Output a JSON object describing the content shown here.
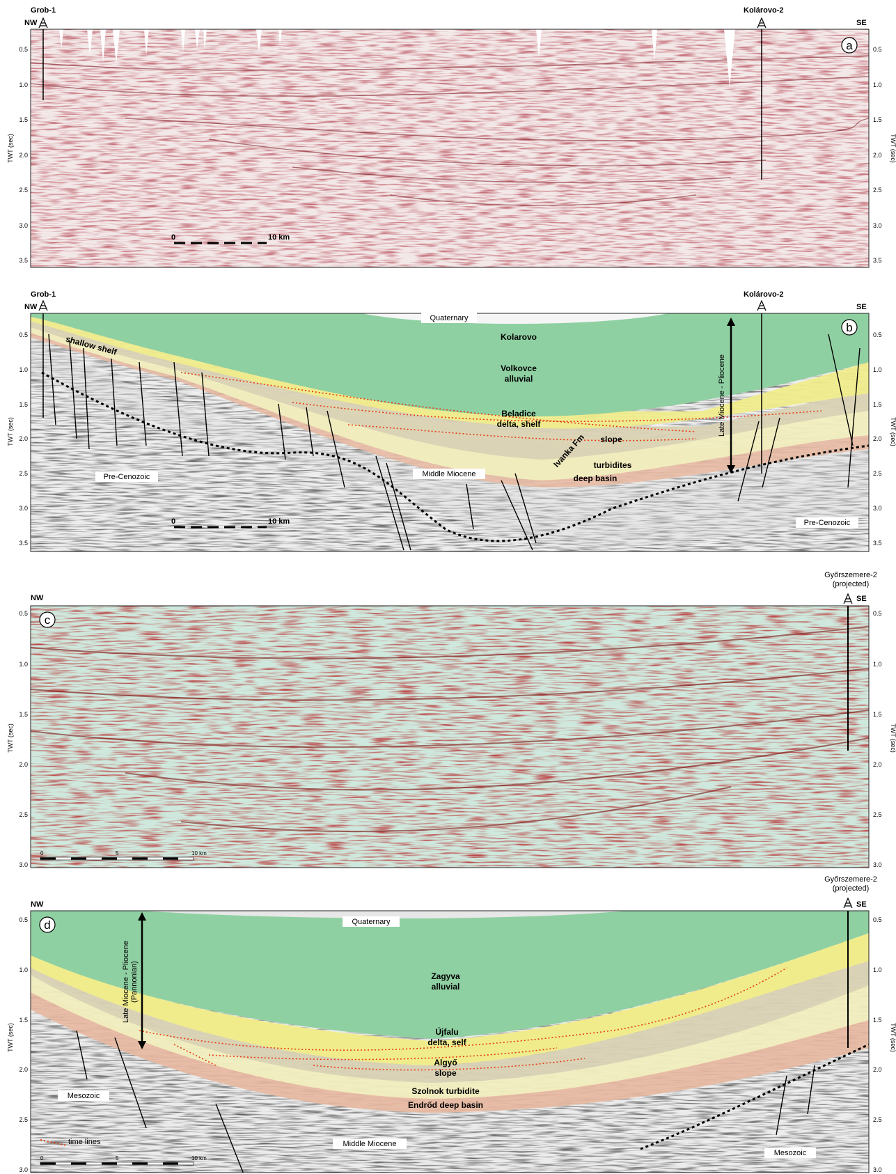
{
  "panels": [
    {
      "id": "a",
      "well_left": "Grob-1",
      "well_right": "Kolárovo-2",
      "nw": "NW",
      "se": "SE",
      "axis_label_left": "TWT (sec)",
      "axis_label_right": "TWT (sec)",
      "ticks": [
        "0.5",
        "1.0",
        "1.5",
        "2.0",
        "2.5",
        "3.0",
        "3.5"
      ],
      "scale_zero": "0",
      "scale_end": "10 km",
      "style": "seismic-red"
    },
    {
      "id": "b",
      "well_left": "Grob-1",
      "well_right": "Kolárovo-2",
      "nw": "NW",
      "se": "SE",
      "axis_label_left": "TWT (sec)",
      "axis_label_right": "TWT (sec)",
      "ticks": [
        "0.5",
        "1.0",
        "1.5",
        "2.0",
        "2.5",
        "3.0",
        "3.5"
      ],
      "scale_zero": "0",
      "scale_end": "10 km",
      "labels": {
        "quaternary": "Quaternary",
        "unit1": "Kolarovo",
        "unit2a": "Volkovce",
        "unit2b": "alluvial",
        "unit3a": "Beladice",
        "unit3b": "delta, shelf",
        "unit4": "slope",
        "unit5": "Ivanka Fm",
        "unit6": "turbidites",
        "unit7": "deep basin",
        "shelf": "shallow shelf",
        "middle": "Middle Miocene",
        "basement_left": "Pre-Cenozoic",
        "basement_right": "Pre-Cenozoic",
        "age": "Late Miocene - Pliocene"
      },
      "colors": {
        "alluvial": "#8fd0a2",
        "delta": "#f0ec8c",
        "slope": "#d9d2b4",
        "turbidite": "#f1eebf",
        "deep": "#e8b8a0"
      }
    },
    {
      "id": "c",
      "well_right": "Győrszemere-2",
      "well_right_sub": "(projected)",
      "nw": "NW",
      "se": "SE",
      "axis_label_left": "TWT (sec)",
      "axis_label_right": "TWT (sec)",
      "ticks": [
        "0.5",
        "1.0",
        "1.5",
        "2.0",
        "2.5",
        "3.0"
      ],
      "scale_zero": "0",
      "scale_mid": "5",
      "scale_end": "10 km",
      "style": "seismic-teal"
    },
    {
      "id": "d",
      "well_right": "Győrszemere-2",
      "well_right_sub": "(projected)",
      "nw": "NW",
      "se": "SE",
      "axis_label_left": "TWT (sec)",
      "axis_label_right": "TWT (sec)",
      "ticks": [
        "0.5",
        "1.0",
        "1.5",
        "2.0",
        "2.5",
        "3.0"
      ],
      "scale_zero": "0",
      "scale_mid": "5",
      "scale_end": "10 km",
      "labels": {
        "quaternary": "Quaternary",
        "unit1a": "Zagyva",
        "unit1b": "alluvial",
        "unit2a": "Újfalu",
        "unit2b": "delta, self",
        "unit3a": "Algyő",
        "unit3b": "slope",
        "unit4": "Szolnok turbidite",
        "unit5": "Endrőd deep basin",
        "middle": "Middle Miocene",
        "basement_left": "Mesozoic",
        "basement_right": "Mesozoic",
        "age_a": "Late Miocene - Pliocene",
        "age_b": "(Pannonian)",
        "legend": "time lines"
      }
    }
  ]
}
